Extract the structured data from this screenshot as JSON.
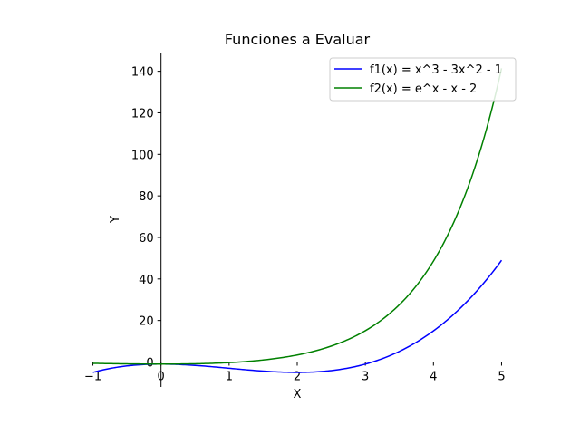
{
  "chart_data": {
    "type": "line",
    "title": "Funciones a Evaluar",
    "xlabel": "X",
    "ylabel": "Y",
    "xlim": [
      -1.3,
      5.3
    ],
    "ylim": [
      -12,
      149
    ],
    "x_ticks": [
      -1,
      0,
      1,
      2,
      3,
      4,
      5
    ],
    "y_ticks": [
      0,
      20,
      40,
      60,
      80,
      100,
      120,
      140
    ],
    "grid": false,
    "legend_position": "top-right",
    "x_domain": [
      -1,
      5
    ],
    "series": [
      {
        "name": "f1(x) = x^3 - 3x^2 - 1",
        "color": "#0000ff",
        "x": [
          -1,
          -0.5,
          0,
          0.5,
          1,
          1.5,
          2,
          2.5,
          3,
          3.5,
          4,
          4.5,
          5
        ],
        "y": [
          -5,
          -1.875,
          -1,
          -1.625,
          -3,
          -4.375,
          -5,
          -4.125,
          -1,
          5.125,
          15,
          29.375,
          49
        ]
      },
      {
        "name": "f2(x) = e^x - x - 2",
        "color": "#008000",
        "x": [
          -1,
          -0.5,
          0,
          0.5,
          1,
          1.5,
          2,
          2.5,
          3,
          3.5,
          4,
          4.5,
          5
        ],
        "y": [
          -0.632,
          -0.893,
          -1,
          -0.851,
          -0.282,
          0.982,
          3.389,
          7.682,
          15.086,
          27.615,
          48.598,
          83.517,
          141.413
        ]
      }
    ]
  }
}
